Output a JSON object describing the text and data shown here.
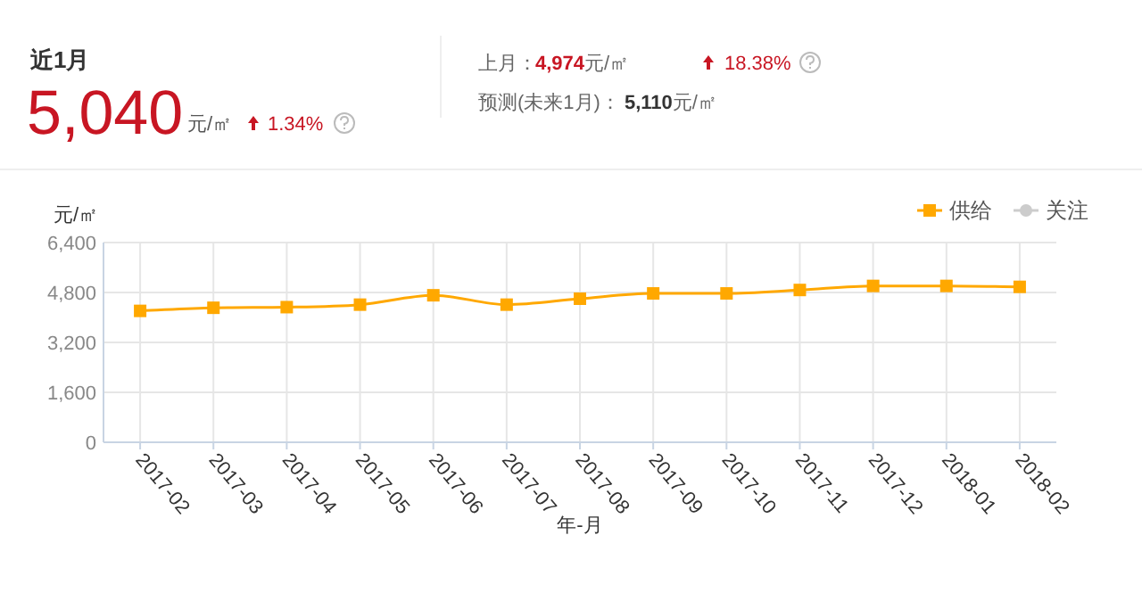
{
  "chart_data": [
    {
      "type": "other",
      "title": "近1月",
      "annotations": [
        "5,040",
        "元/㎡",
        "1.34%",
        "上月：",
        "4,974元/㎡",
        "18.38%",
        "预测(未来1月)：",
        "5,110元/㎡"
      ]
    },
    {
      "type": "line",
      "ylabel": "元/㎡",
      "xlabel": "年-月",
      "categories": [
        "2017-02",
        "2017-03",
        "2017-04",
        "2017-05",
        "2017-06",
        "2017-07",
        "2017-08",
        "2017-09",
        "2017-10",
        "2017-11",
        "2017-12",
        "2018-01",
        "2018-02"
      ],
      "ylim": [
        0,
        6400
      ],
      "yticks": [
        0,
        {
          "value": 1600,
          "label": "1,600"
        },
        {
          "value": 3200,
          "label": "3,200"
        },
        {
          "value": 4800,
          "label": "4,800"
        },
        {
          "value": 6400,
          "label": "6,400"
        }
      ],
      "grid": true,
      "legend": "top right",
      "marker": "square",
      "series": [
        {
          "name": "供给",
          "color": "#ffa800",
          "values": [
            4210,
            4310,
            4330,
            4410,
            4710,
            4410,
            4600,
            4770,
            4770,
            4880,
            5010,
            5010,
            4980
          ]
        },
        {
          "name": "关注",
          "color": "#cccccc",
          "values": [
            null,
            null,
            null,
            null,
            null,
            null,
            null,
            null,
            null,
            null,
            null,
            null,
            null
          ]
        }
      ]
    }
  ]
}
